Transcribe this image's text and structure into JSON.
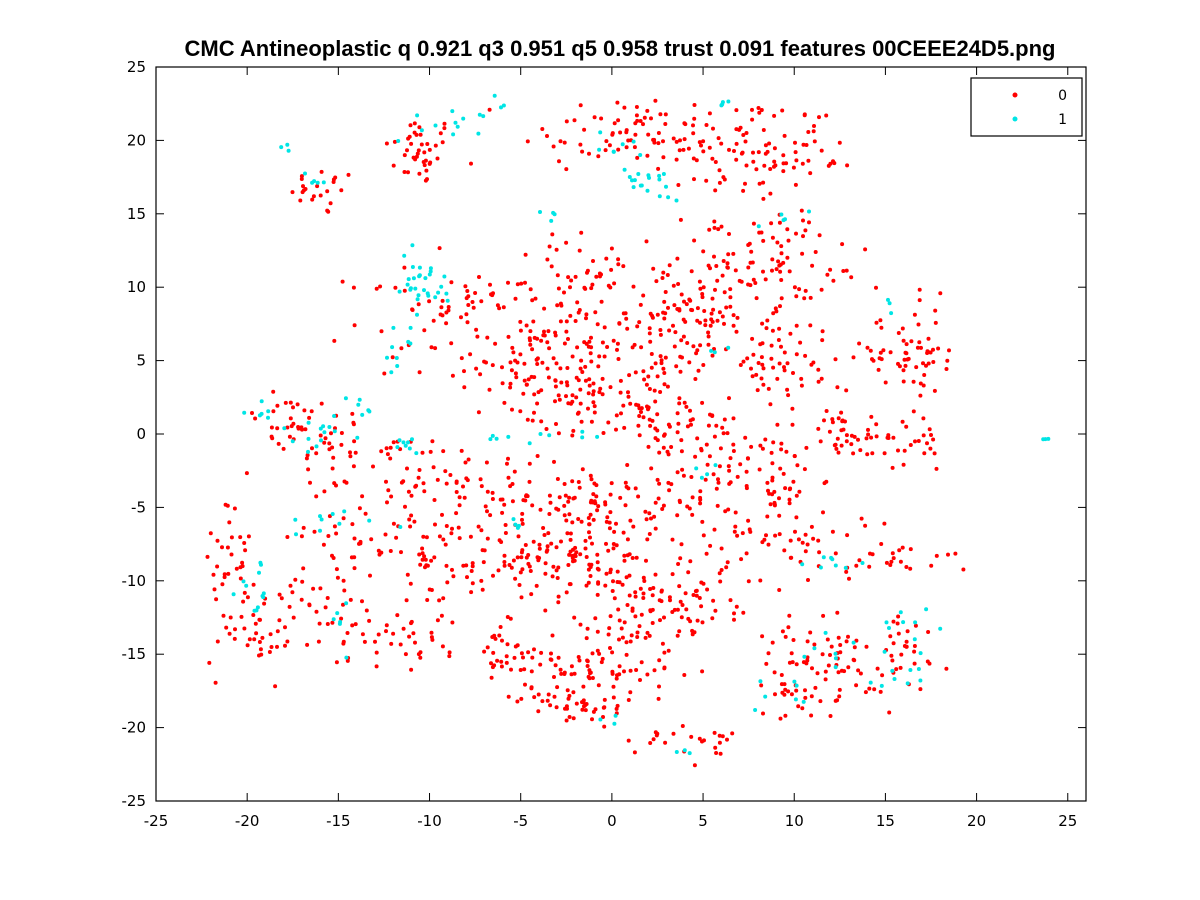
{
  "chart_data": {
    "type": "scatter",
    "title": "CMC Antineoplastic q 0.921 q3 0.951 q5 0.958 trust 0.091 features 00CEEE24D5.png",
    "xlabel": "",
    "ylabel": "",
    "xlim": [
      -25,
      26
    ],
    "ylim": [
      -25,
      25
    ],
    "x_ticks": [
      -25,
      -20,
      -15,
      -10,
      -5,
      0,
      5,
      10,
      15,
      20,
      25
    ],
    "y_ticks": [
      -25,
      -20,
      -15,
      -10,
      -5,
      0,
      5,
      10,
      15,
      20,
      25
    ],
    "grid": false,
    "legend_position": "top-right",
    "series": [
      {
        "name": "0",
        "color": "#ff0000",
        "clusters": [
          {
            "cx": -10.5,
            "cy": 19.3,
            "sx": 1.0,
            "sy": 1.2,
            "n": 40
          },
          {
            "cx": -15.8,
            "cy": 16.5,
            "sx": 0.9,
            "sy": 0.8,
            "n": 22
          },
          {
            "cx": 0.5,
            "cy": 20.5,
            "sx": 2.8,
            "sy": 1.4,
            "n": 70
          },
          {
            "cx": 7.0,
            "cy": 19.5,
            "sx": 2.2,
            "sy": 1.8,
            "n": 70
          },
          {
            "cx": 10.5,
            "cy": 18.8,
            "sx": 1.4,
            "sy": 1.2,
            "n": 30
          },
          {
            "cx": -11.5,
            "cy": 8.0,
            "sx": 1.5,
            "sy": 2.0,
            "n": 30
          },
          {
            "cx": -7.5,
            "cy": 9.0,
            "sx": 1.5,
            "sy": 1.2,
            "n": 18
          },
          {
            "cx": -3.0,
            "cy": 10.0,
            "sx": 2.0,
            "sy": 1.5,
            "n": 35
          },
          {
            "cx": 0.5,
            "cy": 11.0,
            "sx": 2.5,
            "sy": 1.5,
            "n": 40
          },
          {
            "cx": 7.5,
            "cy": 12.0,
            "sx": 2.5,
            "sy": 1.8,
            "n": 70
          },
          {
            "cx": 10.0,
            "cy": 9.0,
            "sx": 1.8,
            "sy": 1.8,
            "n": 45
          },
          {
            "cx": 5.0,
            "cy": 8.0,
            "sx": 2.0,
            "sy": 1.2,
            "n": 45
          },
          {
            "cx": -5.0,
            "cy": 5.5,
            "sx": 1.8,
            "sy": 1.5,
            "n": 50
          },
          {
            "cx": -1.0,
            "cy": 6.0,
            "sx": 2.2,
            "sy": 1.5,
            "n": 70
          },
          {
            "cx": 3.0,
            "cy": 5.0,
            "sx": 1.8,
            "sy": 1.5,
            "n": 45
          },
          {
            "cx": 9.0,
            "cy": 4.0,
            "sx": 1.8,
            "sy": 1.5,
            "n": 40
          },
          {
            "cx": 15.5,
            "cy": 5.5,
            "sx": 1.5,
            "sy": 1.2,
            "n": 40
          },
          {
            "cx": 17.5,
            "cy": 5.5,
            "sx": 0.6,
            "sy": 1.8,
            "n": 25
          },
          {
            "cx": -3.0,
            "cy": 2.0,
            "sx": 2.0,
            "sy": 1.2,
            "n": 50
          },
          {
            "cx": 2.0,
            "cy": 1.5,
            "sx": 2.0,
            "sy": 1.5,
            "n": 60
          },
          {
            "cx": 5.5,
            "cy": -1.0,
            "sx": 1.5,
            "sy": 1.5,
            "n": 40
          },
          {
            "cx": 9.0,
            "cy": -3.0,
            "sx": 1.2,
            "sy": 1.5,
            "n": 40
          },
          {
            "cx": 14.5,
            "cy": -0.5,
            "sx": 2.3,
            "sy": 1.0,
            "n": 50
          },
          {
            "cx": -18.0,
            "cy": 0.5,
            "sx": 1.2,
            "sy": 1.2,
            "n": 25
          },
          {
            "cx": -15.0,
            "cy": 0.0,
            "sx": 1.5,
            "sy": 1.0,
            "n": 25
          },
          {
            "cx": -12.0,
            "cy": -2.5,
            "sx": 3.0,
            "sy": 1.2,
            "n": 45
          },
          {
            "cx": -7.0,
            "cy": -3.5,
            "sx": 2.5,
            "sy": 1.5,
            "n": 45
          },
          {
            "cx": -2.0,
            "cy": -4.5,
            "sx": 2.0,
            "sy": 1.2,
            "n": 50
          },
          {
            "cx": 2.5,
            "cy": -4.5,
            "sx": 2.0,
            "sy": 1.3,
            "n": 50
          },
          {
            "cx": -13.0,
            "cy": -7.0,
            "sx": 2.5,
            "sy": 1.2,
            "n": 45
          },
          {
            "cx": -9.0,
            "cy": -9.0,
            "sx": 2.0,
            "sy": 1.5,
            "n": 45
          },
          {
            "cx": -5.0,
            "cy": -8.0,
            "sx": 1.5,
            "sy": 1.5,
            "n": 35
          },
          {
            "cx": -3.0,
            "cy": -8.5,
            "sx": 1.5,
            "sy": 1.5,
            "n": 45
          },
          {
            "cx": 0.0,
            "cy": -9.0,
            "sx": 1.5,
            "sy": 2.0,
            "n": 60
          },
          {
            "cx": 4.0,
            "cy": -10.5,
            "sx": 1.8,
            "sy": 1.5,
            "n": 55
          },
          {
            "cx": 7.5,
            "cy": -7.5,
            "sx": 1.5,
            "sy": 1.5,
            "n": 25
          },
          {
            "cx": -20.8,
            "cy": -9.0,
            "sx": 0.8,
            "sy": 3.0,
            "n": 40
          },
          {
            "cx": -19.0,
            "cy": -13.5,
            "sx": 0.9,
            "sy": 1.5,
            "n": 30
          },
          {
            "cx": -16.0,
            "cy": -12.0,
            "sx": 1.0,
            "sy": 1.2,
            "n": 25
          },
          {
            "cx": -13.5,
            "cy": -13.5,
            "sx": 0.9,
            "sy": 1.2,
            "n": 20
          },
          {
            "cx": -10.5,
            "cy": -13.5,
            "sx": 1.0,
            "sy": 1.2,
            "n": 20
          },
          {
            "cx": -6.0,
            "cy": -14.5,
            "sx": 1.5,
            "sy": 1.5,
            "n": 35
          },
          {
            "cx": -3.5,
            "cy": -17.0,
            "sx": 1.5,
            "sy": 1.2,
            "n": 40
          },
          {
            "cx": 0.0,
            "cy": -15.5,
            "sx": 1.8,
            "sy": 1.5,
            "n": 60
          },
          {
            "cx": -1.0,
            "cy": -19.0,
            "sx": 1.2,
            "sy": 0.8,
            "n": 20
          },
          {
            "cx": 3.0,
            "cy": -13.0,
            "sx": 1.5,
            "sy": 1.2,
            "n": 30
          },
          {
            "cx": 5.5,
            "cy": -21.0,
            "sx": 0.8,
            "sy": 0.6,
            "n": 15
          },
          {
            "cx": 2.0,
            "cy": -20.8,
            "sx": 0.9,
            "sy": 0.5,
            "n": 10
          },
          {
            "cx": 11.5,
            "cy": -7.5,
            "sx": 1.2,
            "sy": 1.2,
            "n": 25
          },
          {
            "cx": 16.0,
            "cy": -8.5,
            "sx": 2.0,
            "sy": 0.6,
            "n": 25
          },
          {
            "cx": 10.5,
            "cy": -14.5,
            "sx": 1.2,
            "sy": 1.2,
            "n": 30
          },
          {
            "cx": 13.0,
            "cy": -16.0,
            "sx": 1.3,
            "sy": 1.3,
            "n": 35
          },
          {
            "cx": 9.5,
            "cy": -17.5,
            "sx": 0.8,
            "sy": 1.0,
            "n": 20
          },
          {
            "cx": 16.0,
            "cy": -15.0,
            "sx": 1.2,
            "sy": 1.5,
            "n": 30
          },
          {
            "cx": 12.0,
            "cy": 0.2,
            "sx": 0.9,
            "sy": 0.8,
            "n": 15
          }
        ]
      },
      {
        "name": "1",
        "color": "#00e5e5",
        "clusters": [
          {
            "cx": -10.5,
            "cy": 10.0,
            "sx": 1.0,
            "sy": 1.2,
            "n": 30
          },
          {
            "cx": -11.5,
            "cy": 6.0,
            "sx": 0.4,
            "sy": 0.8,
            "n": 8
          },
          {
            "cx": -8.5,
            "cy": 21.0,
            "sx": 1.2,
            "sy": 0.6,
            "n": 12
          },
          {
            "cx": -6.3,
            "cy": 22.6,
            "sx": 0.2,
            "sy": 0.2,
            "n": 3
          },
          {
            "cx": 2.5,
            "cy": 17.2,
            "sx": 1.0,
            "sy": 0.6,
            "n": 15
          },
          {
            "cx": 0.5,
            "cy": 19.0,
            "sx": 1.0,
            "sy": 0.8,
            "n": 10
          },
          {
            "cx": -17.8,
            "cy": 19.5,
            "sx": 0.2,
            "sy": 0.2,
            "n": 3
          },
          {
            "cx": -16.2,
            "cy": 17.3,
            "sx": 0.4,
            "sy": 0.3,
            "n": 5
          },
          {
            "cx": -19.0,
            "cy": 1.6,
            "sx": 0.5,
            "sy": 0.4,
            "n": 6
          },
          {
            "cx": -16.0,
            "cy": 0.0,
            "sx": 1.2,
            "sy": 0.8,
            "n": 14
          },
          {
            "cx": -11.2,
            "cy": -0.5,
            "sx": 0.5,
            "sy": 0.4,
            "n": 8
          },
          {
            "cx": -14.0,
            "cy": 1.8,
            "sx": 0.6,
            "sy": 0.4,
            "n": 6
          },
          {
            "cx": -4.0,
            "cy": -0.2,
            "sx": 1.5,
            "sy": 0.3,
            "n": 10
          },
          {
            "cx": -15.5,
            "cy": -6.0,
            "sx": 1.5,
            "sy": 0.4,
            "n": 10
          },
          {
            "cx": -19.5,
            "cy": -11.0,
            "sx": 0.8,
            "sy": 1.5,
            "n": 12
          },
          {
            "cx": -15.0,
            "cy": -13.0,
            "sx": 0.4,
            "sy": 1.2,
            "n": 6
          },
          {
            "cx": -5.5,
            "cy": -6.0,
            "sx": 0.4,
            "sy": 0.3,
            "n": 4
          },
          {
            "cx": 13.0,
            "cy": -8.8,
            "sx": 1.5,
            "sy": 0.3,
            "n": 8
          },
          {
            "cx": 16.5,
            "cy": -13.0,
            "sx": 1.0,
            "sy": 1.2,
            "n": 10
          },
          {
            "cx": 16.0,
            "cy": -16.5,
            "sx": 1.0,
            "sy": 0.6,
            "n": 8
          },
          {
            "cx": 9.5,
            "cy": -17.5,
            "sx": 0.8,
            "sy": 0.8,
            "n": 8
          },
          {
            "cx": 12.0,
            "cy": -14.5,
            "sx": 0.6,
            "sy": 0.6,
            "n": 6
          },
          {
            "cx": 23.7,
            "cy": -0.3,
            "sx": 0.1,
            "sy": 0.1,
            "n": 3
          },
          {
            "cx": 4.2,
            "cy": -21.8,
            "sx": 0.2,
            "sy": 0.3,
            "n": 3
          },
          {
            "cx": 0.0,
            "cy": -19.3,
            "sx": 0.3,
            "sy": 0.2,
            "n": 3
          },
          {
            "cx": 9.0,
            "cy": 14.5,
            "sx": 0.5,
            "sy": 0.3,
            "n": 5
          },
          {
            "cx": 15.5,
            "cy": 9.0,
            "sx": 0.3,
            "sy": 0.3,
            "n": 3
          },
          {
            "cx": 5.8,
            "cy": 5.8,
            "sx": 0.3,
            "sy": 0.3,
            "n": 3
          },
          {
            "cx": 6.0,
            "cy": 22.6,
            "sx": 0.3,
            "sy": 0.2,
            "n": 4
          },
          {
            "cx": -3.5,
            "cy": 15.0,
            "sx": 0.4,
            "sy": 0.3,
            "n": 4
          },
          {
            "cx": 5.0,
            "cy": -3.0,
            "sx": 0.5,
            "sy": 0.4,
            "n": 4
          }
        ]
      }
    ]
  }
}
